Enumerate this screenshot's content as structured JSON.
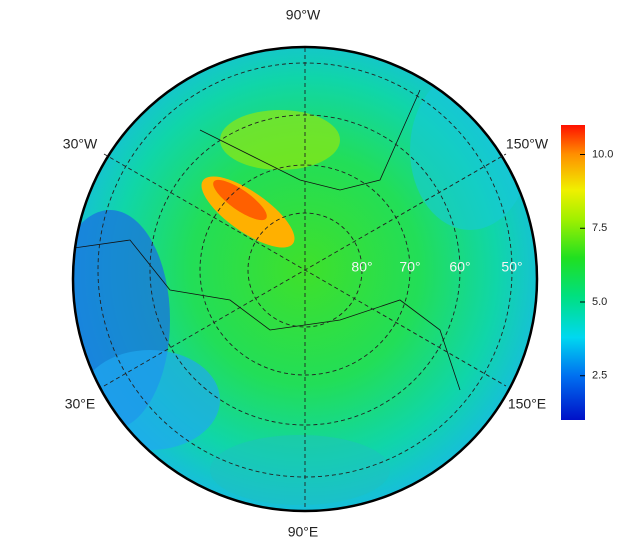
{
  "map": {
    "meridian_labels": [
      "90°W",
      "30°W",
      "150°W",
      "30°E",
      "150°E",
      "90°E"
    ],
    "latitude_labels": [
      "80°",
      "70°",
      "60°",
      "50°"
    ],
    "colorbar": {
      "lim": [
        1,
        11
      ],
      "ticks": [
        2.5,
        {
          "value": 5,
          "label": "5.0"
        },
        7.5,
        {
          "value": 10,
          "label": "10.0"
        }
      ]
    }
  }
}
